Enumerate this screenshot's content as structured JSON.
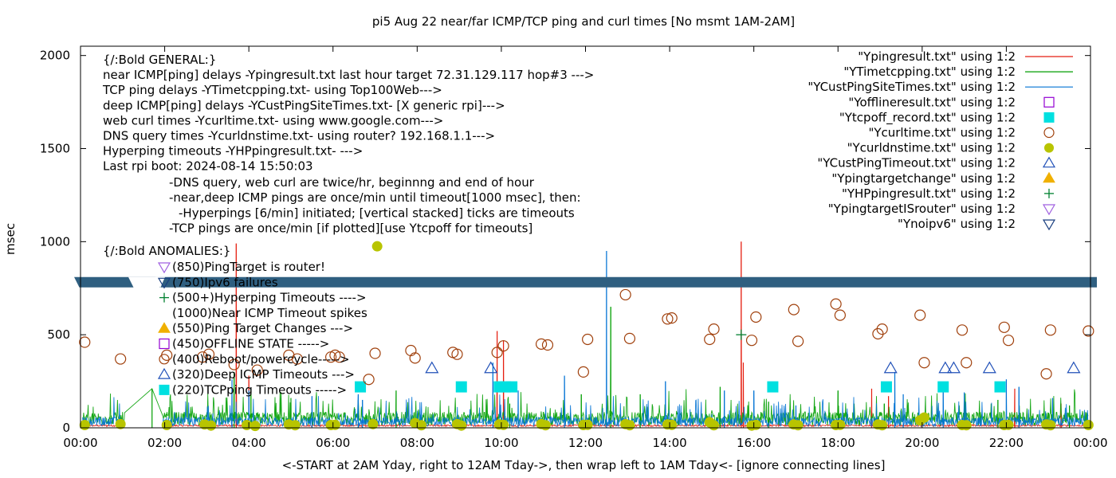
{
  "chart_data": {
    "type": "scatter",
    "title": "pi5 Aug 22  near/far ICMP/TCP ping and curl times [No msmt 1AM-2AM]",
    "xlabel": "<-START at 2AM Yday, right to 12AM Tday->, then wrap left to 1AM Tday<- [ignore connecting lines]",
    "ylabel": "msec",
    "xlim": [
      0,
      24
    ],
    "ylim": [
      0,
      2050
    ],
    "x_ticks": [
      {
        "v": 0,
        "label": "00:00"
      },
      {
        "v": 2,
        "label": "02:00"
      },
      {
        "v": 4,
        "label": "04:00"
      },
      {
        "v": 6,
        "label": "06:00"
      },
      {
        "v": 8,
        "label": "08:00"
      },
      {
        "v": 10,
        "label": "10:00"
      },
      {
        "v": 12,
        "label": "12:00"
      },
      {
        "v": 14,
        "label": "14:00"
      },
      {
        "v": 16,
        "label": "16:00"
      },
      {
        "v": 18,
        "label": "18:00"
      },
      {
        "v": 20,
        "label": "20:00"
      },
      {
        "v": 22,
        "label": "22:00"
      },
      {
        "v": 24,
        "label": "00:00"
      }
    ],
    "y_ticks": [
      {
        "v": 0,
        "label": "0"
      },
      {
        "v": 500,
        "label": "500"
      },
      {
        "v": 1000,
        "label": "1000"
      },
      {
        "v": 1500,
        "label": "1500"
      },
      {
        "v": 2000,
        "label": "2000"
      }
    ],
    "grid": false,
    "legend_position": "top-right",
    "legend": [
      {
        "label": "\"Ypingresult.txt\" using 1:2",
        "marker": "line",
        "color": "#e51e10"
      },
      {
        "label": "\"YTimetcpping.txt\" using 1:2",
        "marker": "line",
        "color": "#009e00"
      },
      {
        "label": "\"YCustPingSiteTimes.txt\" using 1:2",
        "marker": "line",
        "color": "#0072d4"
      },
      {
        "label": "\"Yofflineresult.txt\" using 1:2",
        "marker": "open-square",
        "color": "#9400d3"
      },
      {
        "label": "\"Ytcpoff_record.txt\" using 1:2",
        "marker": "filled-square",
        "color": "#00e0e0"
      },
      {
        "label": "\"Ycurltime.txt\" using 1:2",
        "marker": "open-circle",
        "color": "#a0400c"
      },
      {
        "label": "\"Ycurldnstime.txt\" using 1:2",
        "marker": "filled-circle",
        "color": "#b8c400"
      },
      {
        "label": "\"YCustPingTimeout.txt\" using 1:2",
        "marker": "open-triangle",
        "color": "#2050b8"
      },
      {
        "label": "\"Ypingtargetchange\" using 1:2",
        "marker": "filled-triangle",
        "color": "#f0b000"
      },
      {
        "label": "\"YHPpingresult.txt\" using 1:2",
        "marker": "plus",
        "color": "#008030"
      },
      {
        "label": "\"YpingtargetISrouter\" using 1:2",
        "marker": "open-down-triangle",
        "color": "#a060e0"
      },
      {
        "label": "\"Ynoipv6\" using 1:2",
        "marker": "open-down-triangle",
        "color": "#1a3f80"
      }
    ],
    "annotations_general": [
      "{/:Bold GENERAL:}",
      "near ICMP[ping] delays -Ypingresult.txt last hour target 72.31.129.117 hop#3 --->",
      "TCP ping delays -YTimetcpping.txt- using Top100Web--->",
      "deep ICMP[ping] delays -YCustPingSiteTimes.txt- [X generic rpi]--->",
      "web curl times -Ycurltime.txt- using www.google.com--->",
      "DNS query times -Ycurldnstime.txt- using router? 192.168.1.1--->",
      "Hyperping timeouts -YHPpingresult.txt- --->",
      "Last rpi boot: 2024-08-14 15:50:03"
    ],
    "annotations_notes": [
      "-DNS query, web curl are twice/hr, beginnng and end of hour",
      "-near,deep ICMP pings are once/min until timeout[1000 msec], then:",
      "-Hyperpings [6/min] initiated; [vertical stacked] ticks are timeouts",
      "-TCP pings are once/min [if plotted][use Ytcpoff for timeouts]"
    ],
    "annotations_anomalies_title": "{/:Bold ANOMALIES:}",
    "annotations_anomalies": [
      {
        "text": "(850)PingTarget is router!",
        "marker": "open-down-triangle",
        "color": "#a060e0"
      },
      {
        "text": "(750)Ipv6 failures",
        "marker": "open-down-triangle",
        "color": "#1a3f80"
      },
      {
        "text": "(500+)Hyperping Timeouts ---->",
        "marker": "plus",
        "color": "#008030"
      },
      {
        "text": "(1000)Near ICMP Timeout spikes",
        "marker": "none",
        "color": "#e51e10"
      },
      {
        "text": "(550)Ping Target Changes --->",
        "marker": "filled-triangle",
        "color": "#f0b000"
      },
      {
        "text": "(450)OFFLINE STATE ----->",
        "marker": "open-square",
        "color": "#9400d3"
      },
      {
        "text": "(400)Reboot/powercycle----->",
        "marker": "open-circle",
        "color": "#a0400c"
      },
      {
        "text": "(320)Deep ICMP Timeouts --->",
        "marker": "open-triangle",
        "color": "#2050b8"
      },
      {
        "text": "(220)TCPping Timeouts ----->",
        "marker": "filled-square",
        "color": "#00e0e0"
      }
    ],
    "banner_band": {
      "y": 780,
      "color": "#2f5f80",
      "note": "ipv6 failure markers merge into a continuous band"
    },
    "series": [
      {
        "name": "\"Ypingresult.txt\" using 1:2",
        "kind": "spikes",
        "color": "#e51e10",
        "spikes": [
          [
            3.7,
            990
          ],
          [
            4.0,
            280
          ],
          [
            9.9,
            520
          ],
          [
            10.05,
            470
          ],
          [
            15.7,
            1000
          ],
          [
            15.75,
            350
          ],
          [
            18.8,
            210
          ],
          [
            19.2,
            170
          ],
          [
            22.2,
            210
          ],
          [
            23.3,
            130
          ]
        ],
        "baseline": 12
      },
      {
        "name": "\"YTimetcpping.txt\" using 1:2",
        "kind": "noise",
        "color": "#009e00",
        "spikes": [
          [
            1.7,
            210
          ],
          [
            3.65,
            300
          ],
          [
            4.05,
            200
          ],
          [
            5.0,
            160
          ],
          [
            6.6,
            150
          ],
          [
            7.5,
            200
          ],
          [
            10.2,
            130
          ],
          [
            11.9,
            180
          ],
          [
            12.6,
            650
          ],
          [
            13.3,
            180
          ],
          [
            15.2,
            220
          ],
          [
            16.35,
            140
          ],
          [
            18.0,
            200
          ],
          [
            19.1,
            130
          ],
          [
            21.8,
            150
          ],
          [
            23.5,
            120
          ]
        ],
        "baseline": 45
      },
      {
        "name": "\"YCustPingSiteTimes.txt\" using 1:2",
        "kind": "noise",
        "color": "#0072d4",
        "spikes": [
          [
            3.6,
            260
          ],
          [
            4.0,
            200
          ],
          [
            5.5,
            170
          ],
          [
            6.6,
            180
          ],
          [
            6.7,
            150
          ],
          [
            9.8,
            350
          ],
          [
            10.4,
            200
          ],
          [
            11.5,
            280
          ],
          [
            12.5,
            950
          ],
          [
            13.9,
            250
          ],
          [
            15.3,
            200
          ],
          [
            16.0,
            200
          ],
          [
            17.0,
            120
          ],
          [
            19.35,
            300
          ],
          [
            19.55,
            180
          ],
          [
            20.5,
            200
          ],
          [
            21.0,
            190
          ],
          [
            22.0,
            260
          ],
          [
            22.3,
            220
          ],
          [
            23.1,
            160
          ]
        ],
        "baseline": 30
      },
      {
        "name": "\"Yofflineresult.txt\" using 1:2",
        "kind": "points",
        "marker": "open-square",
        "color": "#9400d3",
        "points": []
      },
      {
        "name": "\"Ytcpoff_record.txt\" using 1:2",
        "kind": "points",
        "marker": "filled-square",
        "color": "#00e0e0",
        "points": [
          [
            6.65,
            220
          ],
          [
            9.05,
            220
          ],
          [
            9.95,
            220
          ],
          [
            10.1,
            220
          ],
          [
            10.25,
            220
          ],
          [
            16.45,
            220
          ],
          [
            19.15,
            220
          ],
          [
            20.5,
            220
          ],
          [
            21.85,
            220
          ]
        ]
      },
      {
        "name": "\"Ycurltime.txt\" using 1:2",
        "kind": "points",
        "marker": "open-circle",
        "color": "#a0400c",
        "points": [
          [
            0.1,
            460
          ],
          [
            0.95,
            370
          ],
          [
            2.05,
            390
          ],
          [
            2.9,
            380
          ],
          [
            3.05,
            395
          ],
          [
            3.65,
            340
          ],
          [
            4.2,
            310
          ],
          [
            4.95,
            390
          ],
          [
            5.15,
            370
          ],
          [
            5.95,
            380
          ],
          [
            6.05,
            390
          ],
          [
            6.15,
            380
          ],
          [
            6.85,
            260
          ],
          [
            7.0,
            400
          ],
          [
            7.85,
            415
          ],
          [
            7.95,
            375
          ],
          [
            8.85,
            405
          ],
          [
            8.95,
            395
          ],
          [
            9.9,
            405
          ],
          [
            10.05,
            440
          ],
          [
            10.95,
            450
          ],
          [
            11.1,
            445
          ],
          [
            11.95,
            300
          ],
          [
            12.05,
            475
          ],
          [
            12.95,
            715
          ],
          [
            13.05,
            480
          ],
          [
            13.95,
            585
          ],
          [
            14.05,
            590
          ],
          [
            14.95,
            475
          ],
          [
            15.05,
            530
          ],
          [
            15.95,
            470
          ],
          [
            16.05,
            595
          ],
          [
            16.95,
            635
          ],
          [
            17.05,
            465
          ],
          [
            17.95,
            665
          ],
          [
            18.05,
            605
          ],
          [
            18.95,
            505
          ],
          [
            19.05,
            530
          ],
          [
            19.95,
            605
          ],
          [
            20.05,
            350
          ],
          [
            20.95,
            525
          ],
          [
            21.05,
            350
          ],
          [
            21.95,
            540
          ],
          [
            22.05,
            470
          ],
          [
            22.95,
            290
          ],
          [
            23.05,
            525
          ],
          [
            23.95,
            520
          ]
        ]
      },
      {
        "name": "\"Ycurldnstime.txt\" using 1:2",
        "kind": "points",
        "marker": "filled-circle",
        "color": "#b8c400",
        "points": [
          [
            0.1,
            15
          ],
          [
            0.95,
            20
          ],
          [
            2.05,
            15
          ],
          [
            2.95,
            18
          ],
          [
            3.1,
            12
          ],
          [
            3.95,
            15
          ],
          [
            4.15,
            10
          ],
          [
            4.95,
            18
          ],
          [
            5.1,
            14
          ],
          [
            5.95,
            15
          ],
          [
            6.05,
            16
          ],
          [
            6.95,
            20
          ],
          [
            7.05,
            975
          ],
          [
            7.95,
            25
          ],
          [
            8.1,
            14
          ],
          [
            8.95,
            20
          ],
          [
            9.05,
            12
          ],
          [
            9.95,
            18
          ],
          [
            10.05,
            16
          ],
          [
            10.95,
            20
          ],
          [
            11.05,
            14
          ],
          [
            11.95,
            15
          ],
          [
            12.05,
            16
          ],
          [
            12.95,
            20
          ],
          [
            13.05,
            14
          ],
          [
            13.95,
            18
          ],
          [
            14.05,
            16
          ],
          [
            14.95,
            30
          ],
          [
            15.05,
            14
          ],
          [
            15.95,
            12
          ],
          [
            16.05,
            16
          ],
          [
            16.95,
            18
          ],
          [
            17.05,
            14
          ],
          [
            17.95,
            15
          ],
          [
            18.05,
            16
          ],
          [
            18.95,
            18
          ],
          [
            19.05,
            14
          ],
          [
            19.95,
            40
          ],
          [
            20.05,
            55
          ],
          [
            20.95,
            15
          ],
          [
            21.05,
            14
          ],
          [
            21.95,
            15
          ],
          [
            22.05,
            16
          ],
          [
            22.95,
            18
          ],
          [
            23.05,
            14
          ],
          [
            23.95,
            15
          ]
        ]
      },
      {
        "name": "\"YCustPingTimeout.txt\" using 1:2",
        "kind": "points",
        "marker": "open-triangle",
        "color": "#2050b8",
        "points": [
          [
            8.35,
            320
          ],
          [
            9.75,
            320
          ],
          [
            19.25,
            320
          ],
          [
            20.55,
            320
          ],
          [
            20.75,
            320
          ],
          [
            21.6,
            320
          ],
          [
            23.6,
            320
          ]
        ]
      },
      {
        "name": "\"Ypingtargetchange\" using 1:2",
        "kind": "points",
        "marker": "filled-triangle",
        "color": "#f0b000",
        "points": []
      },
      {
        "name": "\"YHPpingresult.txt\" using 1:2",
        "kind": "points",
        "marker": "plus",
        "color": "#008030",
        "points": [
          [
            15.7,
            500
          ]
        ]
      },
      {
        "name": "\"YpingtargetISrouter\" using 1:2",
        "kind": "points",
        "marker": "open-down-triangle",
        "color": "#a060e0",
        "points": []
      },
      {
        "name": "\"Ynoipv6\" using 1:2",
        "kind": "points",
        "marker": "open-down-triangle",
        "color": "#1a3f80",
        "points": []
      }
    ]
  }
}
